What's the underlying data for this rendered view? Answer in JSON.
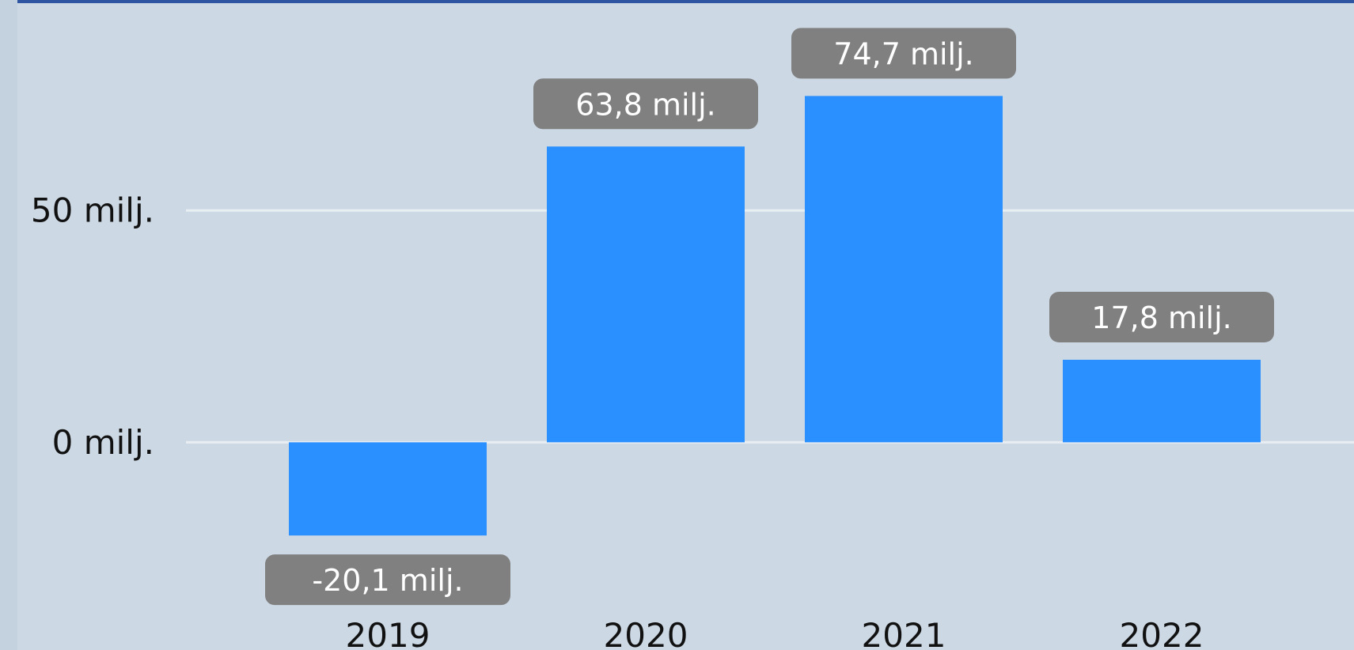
{
  "theme": {
    "background": "#ccd8e4",
    "top_accent": "#2d55a2",
    "bar_color": "#2b90ff",
    "gridline_color": "#e9eef3",
    "label_box_color": "#808080"
  },
  "chart_data": {
    "type": "bar",
    "title": "",
    "xlabel": "",
    "ylabel": "",
    "categories": [
      "2019",
      "2020",
      "2021",
      "2022"
    ],
    "values": [
      -20.1,
      63.8,
      74.7,
      17.8
    ],
    "data_labels": [
      "-20,1 milj.",
      "63,8 milj.",
      "74,7 milj.",
      "17,8 milj."
    ],
    "yticks": [
      {
        "value": 0,
        "label": "0 milj."
      },
      {
        "value": 50,
        "label": "50 milj."
      }
    ],
    "ylim": [
      -44.8,
      95.4
    ],
    "grid": true,
    "legend": "none"
  }
}
